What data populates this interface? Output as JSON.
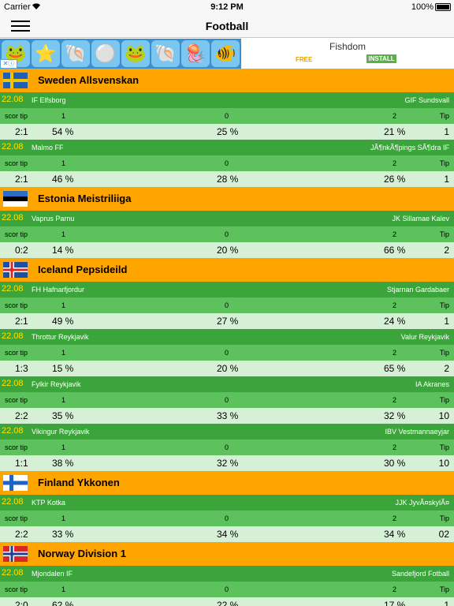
{
  "status_bar": {
    "carrier": "Carrier",
    "time": "9:12 PM",
    "battery": "100%"
  },
  "nav": {
    "title": "Football"
  },
  "ad": {
    "title": "Fishdom",
    "free": "FREE",
    "install": "INSTALL",
    "badge": "✕ⓘ"
  },
  "column_headers": {
    "score": "scor tip",
    "home": "1",
    "draw": "0",
    "away": "2",
    "tip": "Tip"
  },
  "leagues": [
    {
      "name": "Sweden Allsvenskan",
      "flag": "sweden",
      "matches": [
        {
          "date": "22.08",
          "home": "IF Elfsborg",
          "away": "GIF Sundsvall",
          "score": "2:1",
          "p1": "54 %",
          "p0": "25 %",
          "p2": "21 %",
          "tip": "1"
        },
        {
          "date": "22.08",
          "home": "Malmo FF",
          "away": "JÃ¶nkÃ¶pings SÃ¶dra IF",
          "score": "2:1",
          "p1": "46 %",
          "p0": "28 %",
          "p2": "26 %",
          "tip": "1"
        }
      ]
    },
    {
      "name": "Estonia Meistriliiga",
      "flag": "estonia",
      "matches": [
        {
          "date": "22.08",
          "home": "Vaprus Parnu",
          "away": "JK Sillamae Kalev",
          "score": "0:2",
          "p1": "14 %",
          "p0": "20 %",
          "p2": "66 %",
          "tip": "2"
        }
      ]
    },
    {
      "name": "Iceland Pepsideild",
      "flag": "iceland",
      "matches": [
        {
          "date": "22.08",
          "home": "FH Hafnarfjordur",
          "away": "Stjarnan Gardabaer",
          "score": "2:1",
          "p1": "49 %",
          "p0": "27 %",
          "p2": "24 %",
          "tip": "1"
        },
        {
          "date": "22.08",
          "home": "Throttur Reykjavik",
          "away": "Valur Reykjavik",
          "score": "1:3",
          "p1": "15 %",
          "p0": "20 %",
          "p2": "65 %",
          "tip": "2"
        },
        {
          "date": "22.08",
          "home": "Fylkir Reykjavik",
          "away": "IA Akranes",
          "score": "2:2",
          "p1": "35 %",
          "p0": "33 %",
          "p2": "32 %",
          "tip": "10"
        },
        {
          "date": "22.08",
          "home": "Vikingur Reykjavik",
          "away": "IBV Vestmannaeyjar",
          "score": "1:1",
          "p1": "38 %",
          "p0": "32 %",
          "p2": "30 %",
          "tip": "10"
        }
      ]
    },
    {
      "name": "Finland Ykkonen",
      "flag": "finland",
      "matches": [
        {
          "date": "22.08",
          "home": "KTP Kotka",
          "away": "JJK JyvÃ¤skylÃ¤",
          "score": "2:2",
          "p1": "33 %",
          "p0": "34 %",
          "p2": "34 %",
          "tip": "02"
        }
      ]
    },
    {
      "name": "Norway Division 1",
      "flag": "norway",
      "matches": [
        {
          "date": "22.08",
          "home": "Mjondalen IF",
          "away": "Sandefjord Fotball",
          "score": "2:0",
          "p1": "62 %",
          "p0": "22 %",
          "p2": "17 %",
          "tip": "1"
        }
      ]
    }
  ]
}
